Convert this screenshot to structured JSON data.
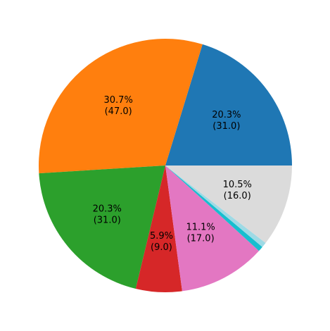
{
  "chart_data": {
    "type": "pie",
    "title": "",
    "start_angle_deg": 0,
    "direction": "counterclockwise",
    "slices": [
      {
        "value": 31.0,
        "percent_label": "20.3%",
        "value_label": "(31.0)",
        "color": "#1f77b4",
        "show_label": true
      },
      {
        "value": 47.0,
        "percent_label": "30.7%",
        "value_label": "(47.0)",
        "color": "#ff7f0e",
        "show_label": true
      },
      {
        "value": 31.0,
        "percent_label": "20.3%",
        "value_label": "(31.0)",
        "color": "#2ca02c",
        "show_label": true
      },
      {
        "value": 9.0,
        "percent_label": "5.9%",
        "value_label": "(9.0)",
        "color": "#d62728",
        "show_label": true
      },
      {
        "value": 17.0,
        "percent_label": "11.1%",
        "value_label": "(17.0)",
        "color": "#e377c2",
        "show_label": true
      },
      {
        "value": 1.0,
        "percent_label": "",
        "value_label": "",
        "color": "#17becf",
        "show_label": false
      },
      {
        "value": 1.0,
        "percent_label": "",
        "value_label": "",
        "color": "#9edae5",
        "show_label": false
      },
      {
        "value": 16.0,
        "percent_label": "10.5%",
        "value_label": "(16.0)",
        "color": "#dbdbdb",
        "show_label": true
      }
    ]
  }
}
